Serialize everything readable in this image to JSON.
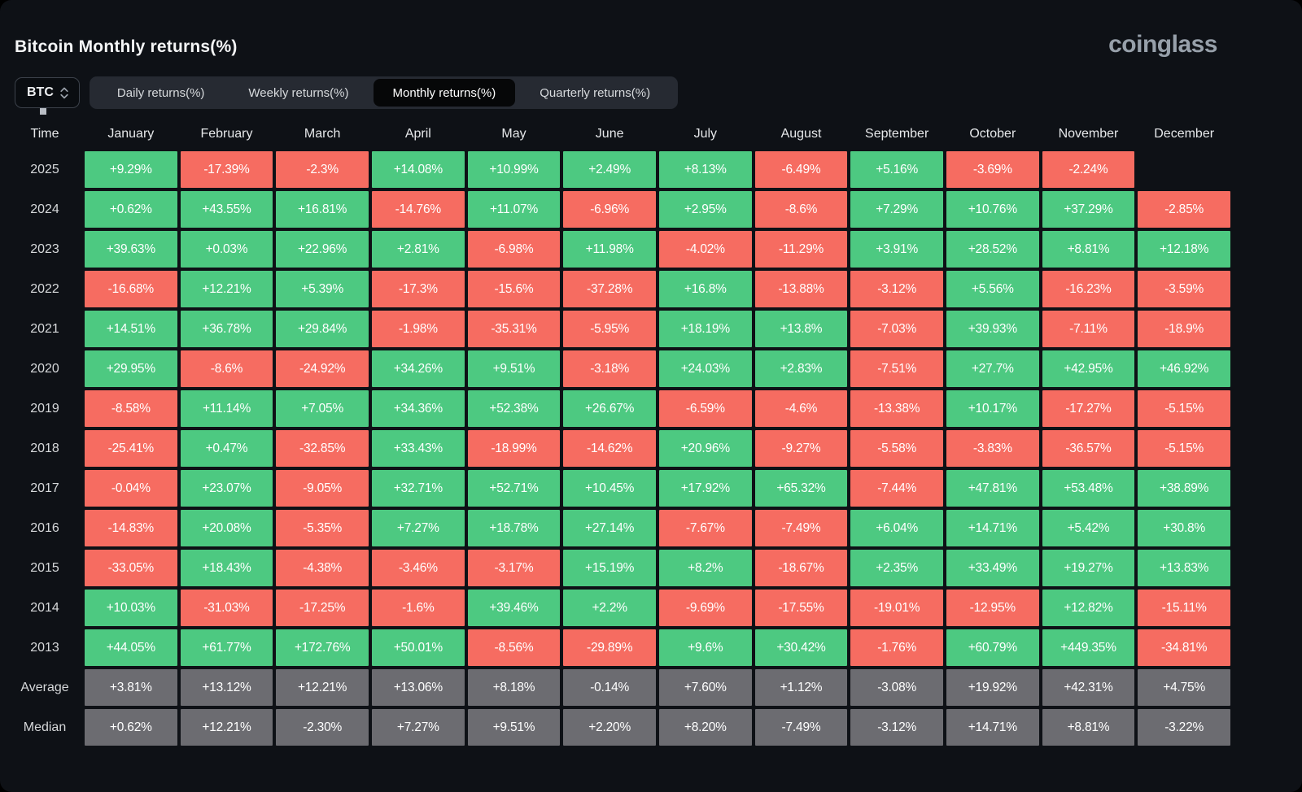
{
  "header": {
    "title": "Bitcoin Monthly returns(%)",
    "logo": "coinglass"
  },
  "controls": {
    "symbol_select": {
      "value": "BTC"
    },
    "tabs": [
      {
        "label": "Daily returns(%)",
        "active": false
      },
      {
        "label": "Weekly returns(%)",
        "active": false
      },
      {
        "label": "Monthly returns(%)",
        "active": true
      },
      {
        "label": "Quarterly returns(%)",
        "active": false
      }
    ]
  },
  "chart_data": {
    "type": "heatmap",
    "title": "Bitcoin Monthly returns(%)",
    "row_header": "Time",
    "columns": [
      "January",
      "February",
      "March",
      "April",
      "May",
      "June",
      "July",
      "August",
      "September",
      "October",
      "November",
      "December"
    ],
    "rows": [
      {
        "label": "2025",
        "kind": "year",
        "values": [
          "+9.29%",
          "-17.39%",
          "-2.3%",
          "+14.08%",
          "+10.99%",
          "+2.49%",
          "+8.13%",
          "-6.49%",
          "+5.16%",
          "-3.69%",
          "-2.24%",
          ""
        ]
      },
      {
        "label": "2024",
        "kind": "year",
        "values": [
          "+0.62%",
          "+43.55%",
          "+16.81%",
          "-14.76%",
          "+11.07%",
          "-6.96%",
          "+2.95%",
          "-8.6%",
          "+7.29%",
          "+10.76%",
          "+37.29%",
          "-2.85%"
        ]
      },
      {
        "label": "2023",
        "kind": "year",
        "values": [
          "+39.63%",
          "+0.03%",
          "+22.96%",
          "+2.81%",
          "-6.98%",
          "+11.98%",
          "-4.02%",
          "-11.29%",
          "+3.91%",
          "+28.52%",
          "+8.81%",
          "+12.18%"
        ]
      },
      {
        "label": "2022",
        "kind": "year",
        "values": [
          "-16.68%",
          "+12.21%",
          "+5.39%",
          "-17.3%",
          "-15.6%",
          "-37.28%",
          "+16.8%",
          "-13.88%",
          "-3.12%",
          "+5.56%",
          "-16.23%",
          "-3.59%"
        ]
      },
      {
        "label": "2021",
        "kind": "year",
        "values": [
          "+14.51%",
          "+36.78%",
          "+29.84%",
          "-1.98%",
          "-35.31%",
          "-5.95%",
          "+18.19%",
          "+13.8%",
          "-7.03%",
          "+39.93%",
          "-7.11%",
          "-18.9%"
        ]
      },
      {
        "label": "2020",
        "kind": "year",
        "values": [
          "+29.95%",
          "-8.6%",
          "-24.92%",
          "+34.26%",
          "+9.51%",
          "-3.18%",
          "+24.03%",
          "+2.83%",
          "-7.51%",
          "+27.7%",
          "+42.95%",
          "+46.92%"
        ]
      },
      {
        "label": "2019",
        "kind": "year",
        "values": [
          "-8.58%",
          "+11.14%",
          "+7.05%",
          "+34.36%",
          "+52.38%",
          "+26.67%",
          "-6.59%",
          "-4.6%",
          "-13.38%",
          "+10.17%",
          "-17.27%",
          "-5.15%"
        ]
      },
      {
        "label": "2018",
        "kind": "year",
        "values": [
          "-25.41%",
          "+0.47%",
          "-32.85%",
          "+33.43%",
          "-18.99%",
          "-14.62%",
          "+20.96%",
          "-9.27%",
          "-5.58%",
          "-3.83%",
          "-36.57%",
          "-5.15%"
        ]
      },
      {
        "label": "2017",
        "kind": "year",
        "values": [
          "-0.04%",
          "+23.07%",
          "-9.05%",
          "+32.71%",
          "+52.71%",
          "+10.45%",
          "+17.92%",
          "+65.32%",
          "-7.44%",
          "+47.81%",
          "+53.48%",
          "+38.89%"
        ]
      },
      {
        "label": "2016",
        "kind": "year",
        "values": [
          "-14.83%",
          "+20.08%",
          "-5.35%",
          "+7.27%",
          "+18.78%",
          "+27.14%",
          "-7.67%",
          "-7.49%",
          "+6.04%",
          "+14.71%",
          "+5.42%",
          "+30.8%"
        ]
      },
      {
        "label": "2015",
        "kind": "year",
        "values": [
          "-33.05%",
          "+18.43%",
          "-4.38%",
          "-3.46%",
          "-3.17%",
          "+15.19%",
          "+8.2%",
          "-18.67%",
          "+2.35%",
          "+33.49%",
          "+19.27%",
          "+13.83%"
        ]
      },
      {
        "label": "2014",
        "kind": "year",
        "values": [
          "+10.03%",
          "-31.03%",
          "-17.25%",
          "-1.6%",
          "+39.46%",
          "+2.2%",
          "-9.69%",
          "-17.55%",
          "-19.01%",
          "-12.95%",
          "+12.82%",
          "-15.11%"
        ]
      },
      {
        "label": "2013",
        "kind": "year",
        "values": [
          "+44.05%",
          "+61.77%",
          "+172.76%",
          "+50.01%",
          "-8.56%",
          "-29.89%",
          "+9.6%",
          "+30.42%",
          "-1.76%",
          "+60.79%",
          "+449.35%",
          "-34.81%"
        ]
      },
      {
        "label": "Average",
        "kind": "summary",
        "values": [
          "+3.81%",
          "+13.12%",
          "+12.21%",
          "+13.06%",
          "+8.18%",
          "-0.14%",
          "+7.60%",
          "+1.12%",
          "-3.08%",
          "+19.92%",
          "+42.31%",
          "+4.75%"
        ]
      },
      {
        "label": "Median",
        "kind": "summary",
        "values": [
          "+0.62%",
          "+12.21%",
          "-2.30%",
          "+7.27%",
          "+9.51%",
          "+2.20%",
          "+8.20%",
          "-7.49%",
          "-3.12%",
          "+14.71%",
          "+8.81%",
          "-3.22%"
        ]
      }
    ],
    "colors": {
      "positive": "#4dc981",
      "negative": "#f66c61",
      "summary": "#6c6c71",
      "background": "#0e1116"
    }
  }
}
